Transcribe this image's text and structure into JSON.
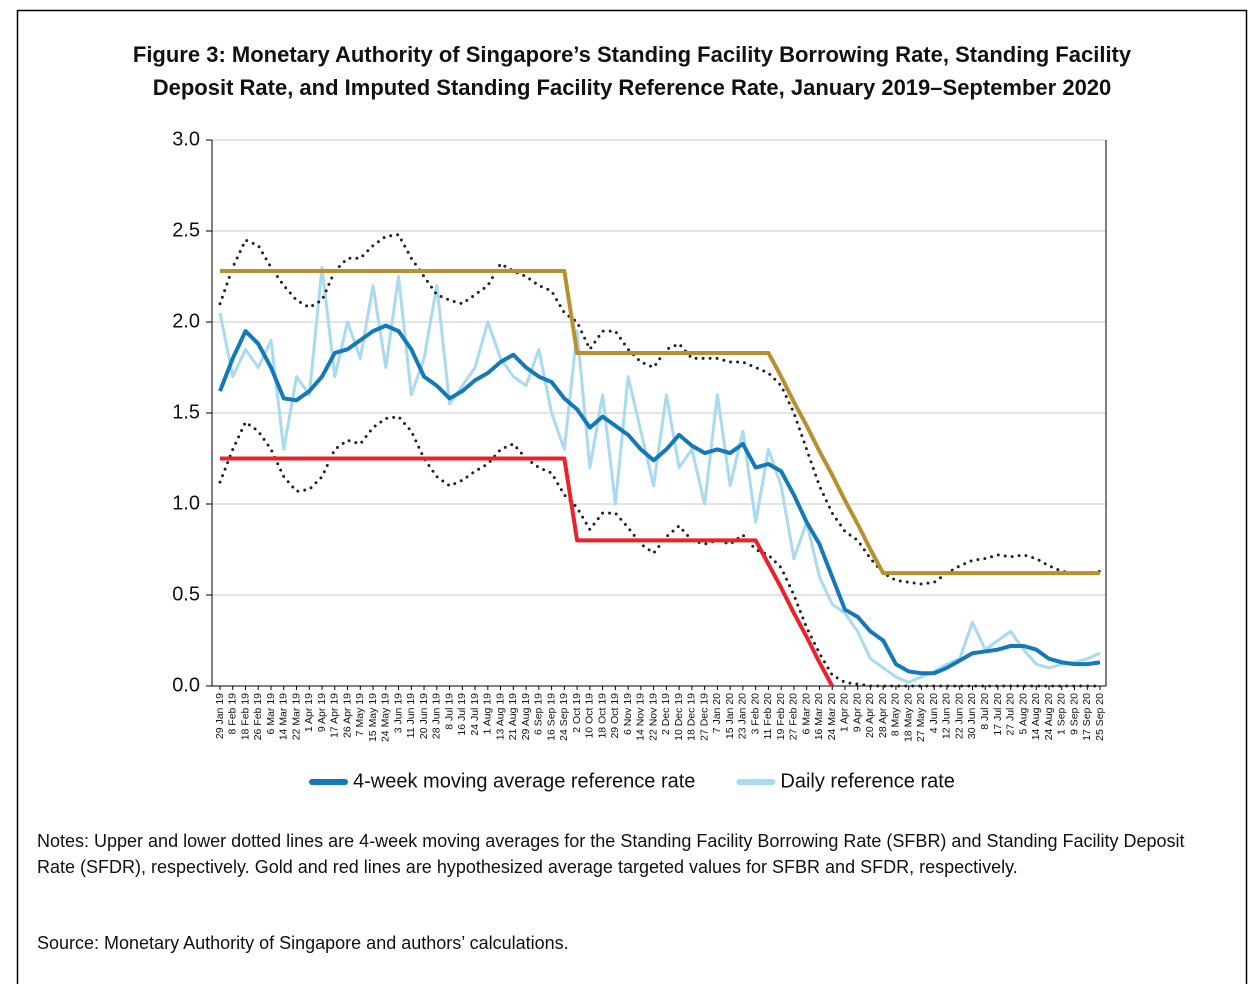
{
  "chart_data": {
    "type": "line",
    "title": "Figure 3: Monetary Authority of Singapore’s Standing Facility Borrowing Rate, Standing Facility",
    "subtitle": "Deposit Rate, and Imputed Standing Facility Reference Rate, January 2019–September 2020",
    "notes": "Notes: Upper and lower dotted lines are 4-week moving averages for the Standing Facility Borrowing Rate (SFBR) and Standing Facility Deposit Rate (SFDR), respectively. Gold and red lines are hypothesized average targeted values for SFBR and SFDR, respectively.",
    "source": "Source: Monetary Authority of Singapore and authors’ calculations.",
    "categories": [
      "29 Jan 19",
      "8 Feb 19",
      "18 Feb 19",
      "26 Feb 19",
      "6 Mar 19",
      "14 Mar 19",
      "22 Mar 19",
      "1 Apr 19",
      "9 Apr 19",
      "17 Apr 19",
      "26 Apr 19",
      "7 May 19",
      "15 May 19",
      "24 May 19",
      "3 Jun 19",
      "11 Jun 19",
      "20 Jun 19",
      "28 Jun 19",
      "8 Jul 19",
      "16 Jul 19",
      "24 Jul 19",
      "1 Aug 19",
      "13 Aug 19",
      "21 Aug 19",
      "29 Aug 19",
      "6 Sep 19",
      "16 Sep 19",
      "24 Sep 19",
      "2 Oct 19",
      "10 Oct 19",
      "18 Oct 19",
      "29 Oct 19",
      "6 Nov 19",
      "14 Nov 19",
      "22 Nov 19",
      "2 Dec 19",
      "10 Dec 19",
      "18 Dec 19",
      "27 Dec 19",
      "7 Jan 20",
      "15 Jan 20",
      "23 Jan 20",
      "3 Feb 20",
      "11 Feb 20",
      "19 Feb 20",
      "27 Feb 20",
      "6 Mar 20",
      "16 Mar 20",
      "24 Mar 20",
      "1 Apr 20",
      "9 Apr 20",
      "20 Apr 20",
      "28 Apr 20",
      "8 May 20",
      "18 May 20",
      "27 May 20",
      "4 Jun 20",
      "12 Jun 20",
      "22 Jun 20",
      "30 Jun 20",
      "8 Jul 20",
      "17 Jul 20",
      "27 Jul 20",
      "5 Aug 20",
      "14 Aug 20",
      "24 Aug 20",
      "1 Sep 20",
      "9 Sep 20",
      "17 Sep 20",
      "25 Sep 20"
    ],
    "ylim": [
      0,
      3
    ],
    "yticks": [
      {
        "value": 0,
        "label": "0.0"
      },
      0.5,
      {
        "value": 1,
        "label": "1.0"
      },
      1.5,
      {
        "value": 2,
        "label": "2.0"
      },
      2.5,
      {
        "value": 3,
        "label": "3.0"
      }
    ],
    "grid": true,
    "series": [
      {
        "name": "Daily reference rate",
        "color": "#a8daf0",
        "width": 3,
        "style": "solid",
        "values": [
          2.05,
          1.7,
          1.85,
          1.75,
          1.9,
          1.3,
          1.7,
          1.6,
          2.3,
          1.7,
          2.0,
          1.8,
          2.2,
          1.75,
          2.25,
          1.6,
          1.8,
          2.2,
          1.55,
          1.65,
          1.75,
          2.0,
          1.8,
          1.7,
          1.65,
          1.85,
          1.5,
          1.3,
          1.95,
          1.2,
          1.6,
          1.0,
          1.7,
          1.4,
          1.1,
          1.6,
          1.2,
          1.3,
          1.0,
          1.6,
          1.1,
          1.4,
          0.9,
          1.3,
          1.1,
          0.7,
          0.9,
          0.6,
          0.45,
          0.4,
          0.3,
          0.15,
          0.1,
          0.05,
          0.02,
          0.05,
          0.08,
          0.12,
          0.15,
          0.35,
          0.2,
          0.25,
          0.3,
          0.2,
          0.12,
          0.1,
          0.12,
          0.13,
          0.15,
          0.18
        ]
      },
      {
        "color": "#222222",
        "width": 3,
        "style": "dotted",
        "values": [
          2.1,
          2.3,
          2.45,
          2.42,
          2.3,
          2.2,
          2.12,
          2.08,
          2.12,
          2.28,
          2.35,
          2.35,
          2.42,
          2.47,
          2.48,
          2.35,
          2.25,
          2.15,
          2.12,
          2.1,
          2.15,
          2.2,
          2.32,
          2.28,
          2.25,
          2.2,
          2.17,
          2.05,
          2.0,
          1.85,
          1.95,
          1.95,
          1.85,
          1.78,
          1.75,
          1.85,
          1.88,
          1.8,
          1.8,
          1.8,
          1.78,
          1.78,
          1.75,
          1.72,
          1.65,
          1.5,
          1.3,
          1.1,
          0.95,
          0.85,
          0.8,
          0.7,
          0.62,
          0.58,
          0.57,
          0.56,
          0.57,
          0.62,
          0.66,
          0.69,
          0.7,
          0.72,
          0.71,
          0.72,
          0.7,
          0.66,
          0.63,
          0.62,
          0.62,
          0.63
        ]
      },
      {
        "color": "#222222",
        "width": 3,
        "style": "dotted",
        "values": [
          1.12,
          1.3,
          1.45,
          1.4,
          1.3,
          1.15,
          1.07,
          1.08,
          1.15,
          1.3,
          1.35,
          1.33,
          1.42,
          1.47,
          1.48,
          1.4,
          1.25,
          1.15,
          1.1,
          1.13,
          1.18,
          1.22,
          1.3,
          1.33,
          1.25,
          1.2,
          1.17,
          1.05,
          0.98,
          0.86,
          0.95,
          0.95,
          0.87,
          0.78,
          0.73,
          0.82,
          0.88,
          0.8,
          0.78,
          0.8,
          0.78,
          0.83,
          0.75,
          0.72,
          0.65,
          0.5,
          0.32,
          0.18,
          0.06,
          0.02,
          0.01,
          0,
          0,
          0,
          0,
          0,
          0,
          0,
          0,
          0,
          0,
          0,
          0,
          0,
          0,
          0,
          0,
          0,
          0,
          0
        ]
      },
      {
        "color": "#b8902e",
        "width": 4,
        "style": "solid",
        "values": [
          2.28,
          2.28,
          2.28,
          2.28,
          2.28,
          2.28,
          2.28,
          2.28,
          2.28,
          2.28,
          2.28,
          2.28,
          2.28,
          2.28,
          2.28,
          2.28,
          2.28,
          2.28,
          2.28,
          2.28,
          2.28,
          2.28,
          2.28,
          2.28,
          2.28,
          2.28,
          2.28,
          2.28,
          1.83,
          1.83,
          1.83,
          1.83,
          1.83,
          1.83,
          1.83,
          1.83,
          1.83,
          1.83,
          1.83,
          1.83,
          1.83,
          1.83,
          1.83,
          1.83,
          1.7,
          1.56,
          1.43,
          1.29,
          1.16,
          1.02,
          0.89,
          0.75,
          0.62,
          0.62,
          0.62,
          0.62,
          0.62,
          0.62,
          0.62,
          0.62,
          0.62,
          0.62,
          0.62,
          0.62,
          0.62,
          0.62,
          0.62,
          0.62,
          0.62,
          0.62
        ]
      },
      {
        "color": "#e8232a",
        "width": 4,
        "style": "solid",
        "values": [
          1.25,
          1.25,
          1.25,
          1.25,
          1.25,
          1.25,
          1.25,
          1.25,
          1.25,
          1.25,
          1.25,
          1.25,
          1.25,
          1.25,
          1.25,
          1.25,
          1.25,
          1.25,
          1.25,
          1.25,
          1.25,
          1.25,
          1.25,
          1.25,
          1.25,
          1.25,
          1.25,
          1.25,
          0.8,
          0.8,
          0.8,
          0.8,
          0.8,
          0.8,
          0.8,
          0.8,
          0.8,
          0.8,
          0.8,
          0.8,
          0.8,
          0.8,
          0.8,
          0.67,
          0.54,
          0.4,
          0.27,
          0.13,
          0.0,
          null,
          null,
          null,
          null,
          null,
          null,
          null,
          null,
          null,
          null,
          null,
          null,
          null,
          null,
          null,
          null,
          null,
          null,
          null,
          null,
          null
        ]
      },
      {
        "name": "4-week moving average reference rate",
        "color": "#1479b8",
        "width": 4,
        "style": "solid",
        "values": [
          1.62,
          1.8,
          1.95,
          1.88,
          1.75,
          1.58,
          1.57,
          1.62,
          1.7,
          1.83,
          1.85,
          1.9,
          1.95,
          1.98,
          1.95,
          1.85,
          1.7,
          1.65,
          1.58,
          1.62,
          1.68,
          1.72,
          1.78,
          1.82,
          1.75,
          1.7,
          1.67,
          1.58,
          1.52,
          1.42,
          1.48,
          1.43,
          1.38,
          1.3,
          1.24,
          1.3,
          1.38,
          1.32,
          1.28,
          1.3,
          1.28,
          1.33,
          1.2,
          1.22,
          1.18,
          1.05,
          0.9,
          0.78,
          0.6,
          0.42,
          0.38,
          0.3,
          0.25,
          0.12,
          0.08,
          0.07,
          0.07,
          0.1,
          0.14,
          0.18,
          0.19,
          0.2,
          0.22,
          0.22,
          0.2,
          0.15,
          0.13,
          0.12,
          0.12,
          0.13
        ]
      }
    ],
    "legend_order": [
      5,
      0
    ]
  }
}
